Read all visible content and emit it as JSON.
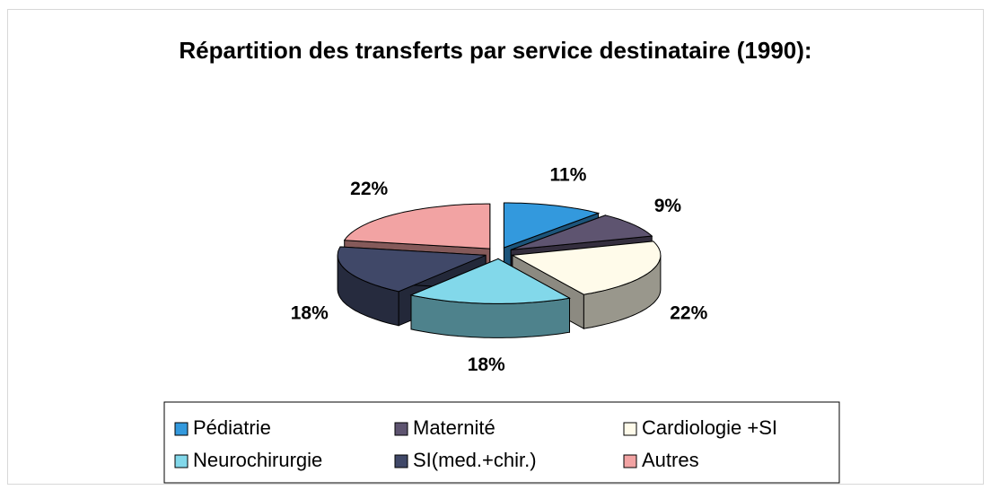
{
  "chart_data": {
    "type": "pie",
    "title": "Répartition des transferts par service destinataire (1990):",
    "categories": [
      "Pédiatrie",
      "Maternité",
      "Cardiologie +SI",
      "Neurochirurgie",
      "SI(med.+chir.)",
      "Autres"
    ],
    "values": [
      11,
      9,
      22,
      18,
      18,
      22
    ],
    "value_labels": [
      "11%",
      "9%",
      "22%",
      "18%",
      "18%",
      "22%"
    ],
    "colors": [
      "#3399dd",
      "#5e5470",
      "#fffbea",
      "#82d8ea",
      "#404868",
      "#f2a3a3"
    ],
    "exploded": true,
    "three_d": true,
    "legend": "bottom"
  }
}
